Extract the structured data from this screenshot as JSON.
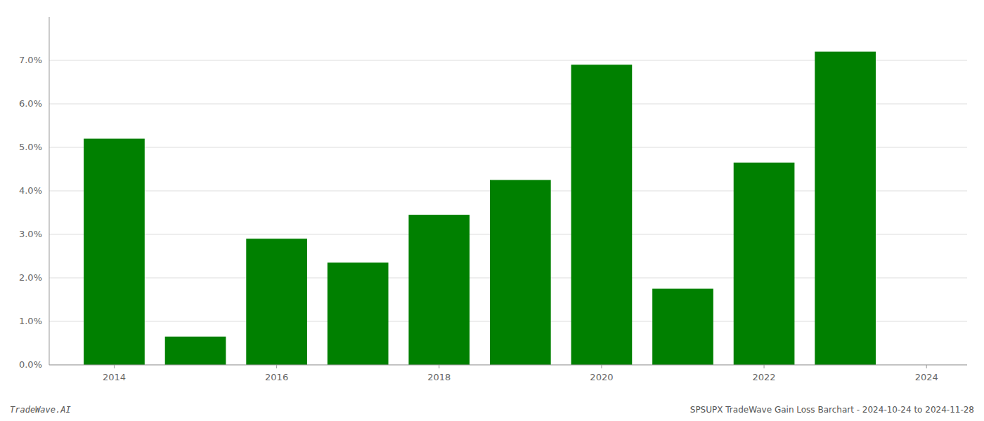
{
  "chart_data": {
    "type": "bar",
    "x": [
      2014,
      2015,
      2016,
      2017,
      2018,
      2019,
      2020,
      2021,
      2022,
      2023
    ],
    "values": [
      0.052,
      0.0065,
      0.029,
      0.0235,
      0.0345,
      0.0425,
      0.069,
      0.0175,
      0.0465,
      0.072
    ],
    "color": "#008000",
    "xlim": [
      2013.2,
      2024.5
    ],
    "xticks": [
      2014,
      2016,
      2018,
      2020,
      2022,
      2024
    ],
    "ylim": [
      0,
      0.08
    ],
    "yticks": [
      {
        "value": 0.0,
        "label": "0.0%"
      },
      {
        "value": 0.01,
        "label": "1.0%"
      },
      {
        "value": 0.02,
        "label": "2.0%"
      },
      {
        "value": 0.03,
        "label": "3.0%"
      },
      {
        "value": 0.04,
        "label": "4.0%"
      },
      {
        "value": 0.05,
        "label": "5.0%"
      },
      {
        "value": 0.06,
        "label": "6.0%"
      },
      {
        "value": 0.07,
        "label": "7.0%"
      }
    ],
    "grid": true,
    "annotations": [
      "TradeWave.AI",
      "SPSUPX TradeWave Gain Loss Barchart - 2024-10-24 to 2024-11-28"
    ]
  }
}
